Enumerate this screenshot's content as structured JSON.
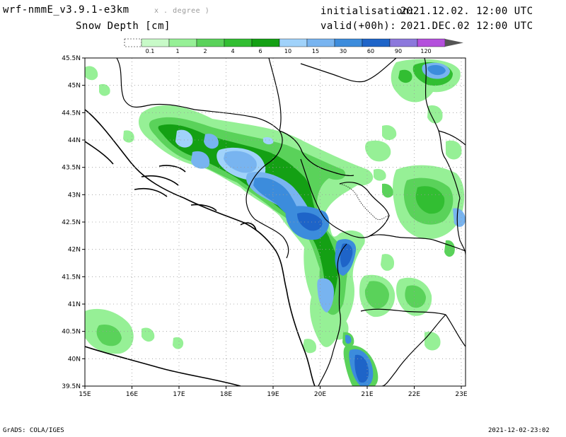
{
  "header": {
    "model": "wrf-nmmE_v3.9.1-e3km",
    "projection": "x . degree )",
    "variable": "Snow Depth [cm]",
    "init_label": "initialisation:",
    "init_value": "2021.12.02.  12:00 UTC",
    "valid_label": "valid(+00h):",
    "valid_value": "2021.DEC.02 12:00 UTC"
  },
  "colorbar": {
    "labels": [
      "0.1",
      "1",
      "2",
      "4",
      "6",
      "10",
      "15",
      "30",
      "60",
      "90",
      "120"
    ],
    "colors": [
      "#c8fac8",
      "#96f096",
      "#5ad25a",
      "#32be32",
      "#14a014",
      "#a0d2fa",
      "#78b4f0",
      "#3c8cdc",
      "#1e64c8",
      "#8c78dc",
      "#b450dc"
    ],
    "arrow_color": "#555555"
  },
  "axes": {
    "lat_labels": [
      "45.5N",
      "45N",
      "44.5N",
      "44N",
      "43.5N",
      "43N",
      "42.5N",
      "42N",
      "41.5N",
      "41N",
      "40.5N",
      "40N",
      "39.5N"
    ],
    "lon_labels": [
      "15E",
      "16E",
      "17E",
      "18E",
      "19E",
      "20E",
      "21E",
      "22E",
      "23E"
    ]
  },
  "footer": {
    "left": "GrADS: COLA/IGES",
    "right": "2021-12-02-23:02"
  }
}
